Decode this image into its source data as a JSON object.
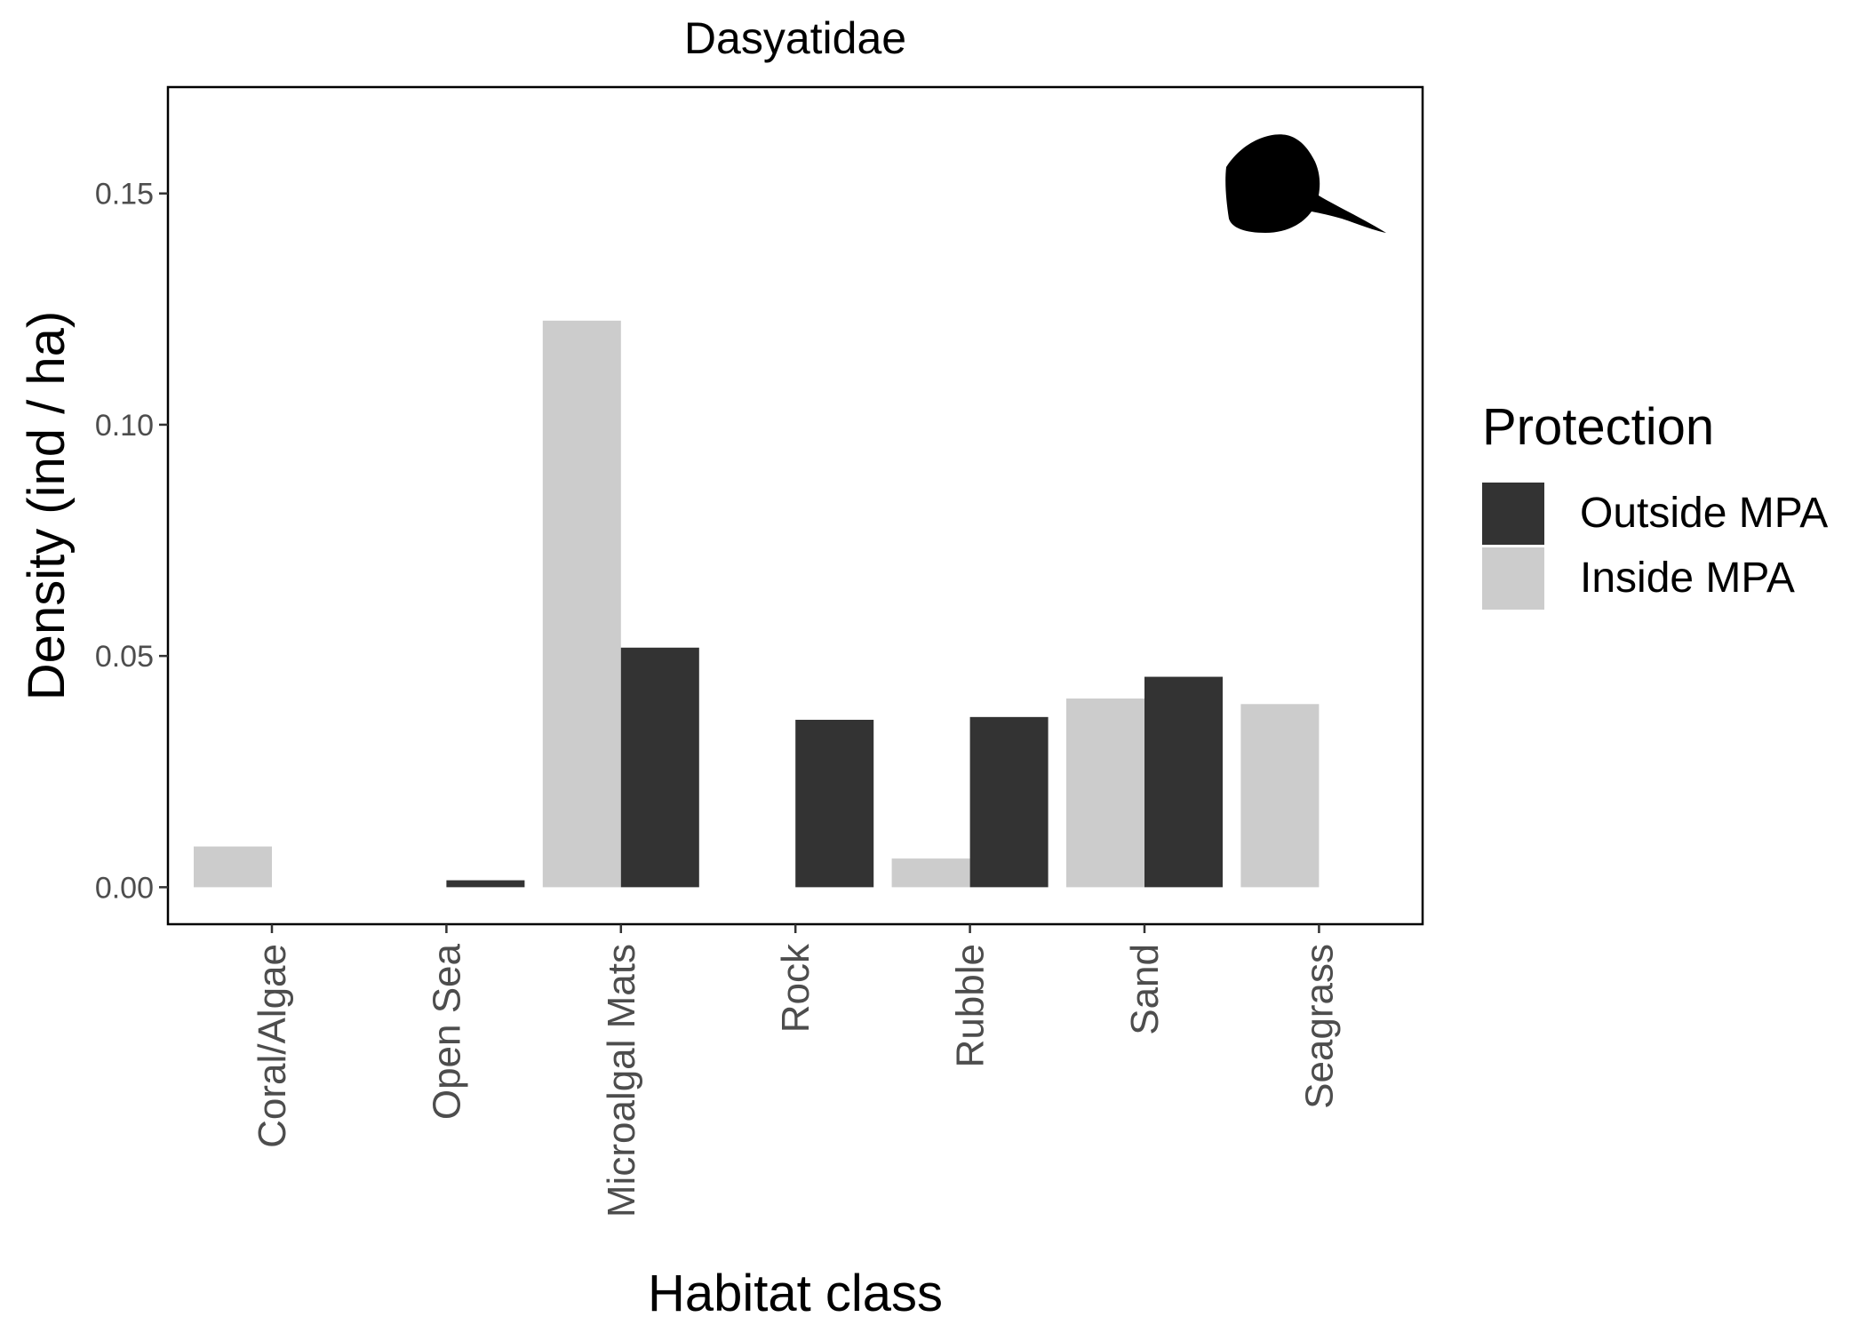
{
  "chart_data": {
    "type": "bar",
    "title": "Dasyatidae",
    "xlabel": "Habitat class",
    "ylabel": "Density (ind / ha)",
    "categories": [
      "Coral/Algae",
      "Open Sea",
      "Microalgal Mats",
      "Rock",
      "Rubble",
      "Sand",
      "Seagrass"
    ],
    "series": [
      {
        "name": "Inside MPA",
        "color": "#cccccc",
        "values": [
          0.0088,
          0.0,
          0.1225,
          0.0,
          0.0062,
          0.0408,
          0.0396
        ]
      },
      {
        "name": "Outside MPA",
        "color": "#333333",
        "values": [
          0.0,
          0.0015,
          0.0518,
          0.0362,
          0.0368,
          0.0455,
          0.0
        ]
      }
    ],
    "yticks": [
      0.0,
      0.05,
      0.1,
      0.15
    ],
    "ytick_labels": [
      "0.00",
      "0.05",
      "0.10",
      "0.15"
    ],
    "ylim": [
      -0.008,
      0.173
    ],
    "grid": false,
    "legend": {
      "title": "Protection",
      "placement": "right",
      "entries": [
        {
          "label": "Outside MPA",
          "color": "#333333"
        },
        {
          "label": "Inside MPA",
          "color": "#cccccc"
        }
      ]
    },
    "icon": "stingray-silhouette-icon"
  }
}
